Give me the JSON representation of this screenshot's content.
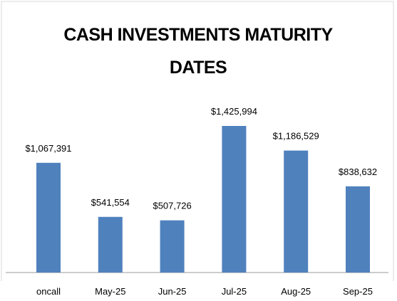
{
  "chart_data": {
    "type": "bar",
    "title": "CASH INVESTMENTS MATURITY DATES",
    "categories": [
      "oncall",
      "May-25",
      "Jun-25",
      "Jul-25",
      "Aug-25",
      "Sep-25"
    ],
    "values": [
      1067391,
      541554,
      507726,
      1425994,
      1186529,
      838632
    ],
    "value_labels": [
      "$1,067,391",
      "$541,554",
      "$507,726",
      "$1,425,994",
      "$1,186,529",
      "$838,632"
    ],
    "color": "#4f81bd"
  }
}
